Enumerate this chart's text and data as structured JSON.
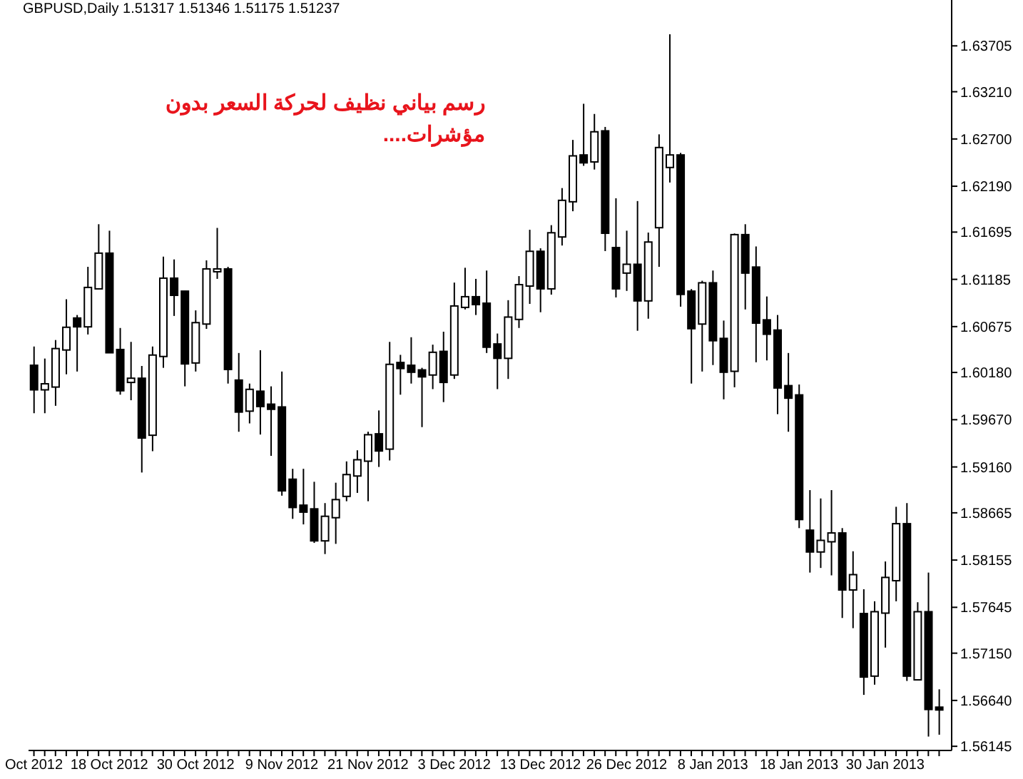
{
  "chart_data": {
    "type": "candlestick",
    "title": "GBPUSD,Daily 1.51317 1.51346 1.51175 1.51237",
    "annotations": [
      "رسم بياني نظيف لحركة السعر بدون مؤشرات...."
    ],
    "categories": [
      "Oct 2012",
      null,
      null,
      null,
      null,
      null,
      null,
      "18 Oct 2012",
      null,
      null,
      null,
      null,
      null,
      null,
      null,
      "30 Oct 2012",
      null,
      null,
      null,
      null,
      null,
      null,
      null,
      "9 Nov 2012",
      null,
      null,
      null,
      null,
      null,
      null,
      null,
      "21 Nov 2012",
      null,
      null,
      null,
      null,
      null,
      null,
      null,
      "3 Dec 2012",
      null,
      null,
      null,
      null,
      null,
      null,
      null,
      "13 Dec 2012",
      null,
      null,
      null,
      null,
      null,
      null,
      null,
      "26 Dec 2012",
      null,
      null,
      null,
      null,
      null,
      null,
      null,
      "8 Jan 2013",
      null,
      null,
      null,
      null,
      null,
      null,
      null,
      "18 Jan 2013",
      null,
      null,
      null,
      null,
      null,
      null,
      null,
      "30 Jan 2013",
      null,
      null,
      null,
      null,
      null
    ],
    "ohlc": [
      [
        1.6025,
        1.6046,
        1.5974,
        1.6
      ],
      [
        1.6,
        1.6033,
        1.5974,
        1.6005
      ],
      [
        1.6003,
        1.6053,
        1.5982,
        1.6043
      ],
      [
        1.6043,
        1.6097,
        1.6016,
        1.6066
      ],
      [
        1.6076,
        1.608,
        1.6019,
        1.6068
      ],
      [
        1.6068,
        1.6132,
        1.6059,
        1.6109
      ],
      [
        1.6109,
        1.6178,
        1.6108,
        1.6146
      ],
      [
        1.6146,
        1.6171,
        1.6039,
        1.604
      ],
      [
        1.6042,
        1.6066,
        1.5994,
        1.5999
      ],
      [
        1.6008,
        1.6051,
        1.5988,
        1.6011
      ],
      [
        1.6011,
        1.6025,
        1.591,
        1.5948
      ],
      [
        1.5951,
        1.6046,
        1.5933,
        1.6036
      ],
      [
        1.6036,
        1.6143,
        1.6023,
        1.6119
      ],
      [
        1.6119,
        1.614,
        1.6079,
        1.6102
      ],
      [
        1.6105,
        1.6106,
        1.6003,
        1.6028
      ],
      [
        1.6029,
        1.6085,
        1.6019,
        1.6071
      ],
      [
        1.6071,
        1.6139,
        1.6065,
        1.6129
      ],
      [
        1.6128,
        1.6174,
        1.6119,
        1.6129
      ],
      [
        1.6129,
        1.6132,
        1.6006,
        1.6022
      ],
      [
        1.6009,
        1.6039,
        1.5954,
        1.5976
      ],
      [
        1.5977,
        1.6006,
        1.5963,
        1.5999
      ],
      [
        1.5997,
        1.6042,
        1.5951,
        1.5982
      ],
      [
        1.5983,
        1.6003,
        1.5928,
        1.5979
      ],
      [
        1.598,
        1.6019,
        1.5885,
        1.5891
      ],
      [
        1.5902,
        1.5914,
        1.586,
        1.5873
      ],
      [
        1.5874,
        1.5914,
        1.5854,
        1.5868
      ],
      [
        1.587,
        1.59,
        1.5834,
        1.5837
      ],
      [
        1.5837,
        1.5877,
        1.5822,
        1.5862
      ],
      [
        1.5862,
        1.5899,
        1.5833,
        1.588
      ],
      [
        1.5885,
        1.5922,
        1.5879,
        1.5907
      ],
      [
        1.5907,
        1.5934,
        1.5888,
        1.5923
      ],
      [
        1.5923,
        1.5954,
        1.5879,
        1.595
      ],
      [
        1.5951,
        1.5977,
        1.5916,
        1.5934
      ],
      [
        1.5936,
        1.6051,
        1.5923,
        1.6026
      ],
      [
        1.6028,
        1.6037,
        1.5994,
        1.6023
      ],
      [
        1.6025,
        1.6056,
        1.6006,
        1.6019
      ],
      [
        1.602,
        1.6023,
        1.5959,
        1.6014
      ],
      [
        1.6016,
        1.6048,
        1.6,
        1.6039
      ],
      [
        1.604,
        1.6062,
        1.5986,
        1.6008
      ],
      [
        1.6016,
        1.6115,
        1.6011,
        1.6089
      ],
      [
        1.6089,
        1.6131,
        1.6086,
        1.6099
      ],
      [
        1.6099,
        1.6119,
        1.608,
        1.6092
      ],
      [
        1.6092,
        1.6128,
        1.6039,
        1.6046
      ],
      [
        1.6048,
        1.606,
        1.6,
        1.6034
      ],
      [
        1.6034,
        1.6096,
        1.6011,
        1.6077
      ],
      [
        1.6076,
        1.6122,
        1.6066,
        1.6112
      ],
      [
        1.6112,
        1.6172,
        1.6092,
        1.6148
      ],
      [
        1.6148,
        1.6152,
        1.6083,
        1.6109
      ],
      [
        1.6109,
        1.6177,
        1.6102,
        1.6168
      ],
      [
        1.6165,
        1.6217,
        1.6155,
        1.6203
      ],
      [
        1.6203,
        1.6269,
        1.6192,
        1.6251
      ],
      [
        1.6252,
        1.6308,
        1.6241,
        1.6245
      ],
      [
        1.6246,
        1.6297,
        1.6237,
        1.6277
      ],
      [
        1.6278,
        1.6283,
        1.6149,
        1.6169
      ],
      [
        1.6152,
        1.6206,
        1.6099,
        1.6109
      ],
      [
        1.6126,
        1.6171,
        1.6106,
        1.6134
      ],
      [
        1.6134,
        1.6203,
        1.6063,
        1.6096
      ],
      [
        1.6096,
        1.6169,
        1.6076,
        1.6158
      ],
      [
        1.6175,
        1.6275,
        1.6132,
        1.626
      ],
      [
        1.624,
        1.6383,
        1.6223,
        1.6252
      ],
      [
        1.6252,
        1.6255,
        1.6089,
        1.6103
      ],
      [
        1.6105,
        1.6108,
        1.6006,
        1.6066
      ],
      [
        1.6071,
        1.6117,
        1.6019,
        1.6114
      ],
      [
        1.6114,
        1.6128,
        1.6026,
        1.6053
      ],
      [
        1.6054,
        1.6074,
        1.5989,
        1.6019
      ],
      [
        1.602,
        1.6168,
        1.6002,
        1.6166
      ],
      [
        1.6166,
        1.6178,
        1.6086,
        1.6126
      ],
      [
        1.6131,
        1.6154,
        1.6029,
        1.6072
      ],
      [
        1.6074,
        1.61,
        1.6031,
        1.606
      ],
      [
        1.6063,
        1.608,
        1.5973,
        1.6002
      ],
      [
        1.6003,
        1.6039,
        1.5954,
        1.5991
      ],
      [
        1.5993,
        1.6005,
        1.585,
        1.586
      ],
      [
        1.5847,
        1.5891,
        1.5802,
        1.5825
      ],
      [
        1.5825,
        1.5882,
        1.5807,
        1.5836
      ],
      [
        1.5836,
        1.5891,
        1.5799,
        1.5844
      ],
      [
        1.5844,
        1.585,
        1.5753,
        1.5784
      ],
      [
        1.5784,
        1.5825,
        1.5742,
        1.5799
      ],
      [
        1.5757,
        1.5784,
        1.567,
        1.569
      ],
      [
        1.5691,
        1.5771,
        1.5681,
        1.5759
      ],
      [
        1.5759,
        1.5814,
        1.5721,
        1.5796
      ],
      [
        1.5794,
        1.5873,
        1.5771,
        1.5854
      ],
      [
        1.5854,
        1.5877,
        1.5685,
        1.5691
      ],
      [
        1.5687,
        1.577,
        1.5687,
        1.5759
      ],
      [
        1.5759,
        1.5802,
        1.5625,
        1.5655
      ],
      [
        1.5656,
        1.5676,
        1.5627,
        1.5655
      ]
    ],
    "ylim": [
      1.561,
      1.642
    ],
    "yticks": [
      1.56145,
      {
        "value": 1.5664,
        "label": "1.56640"
      },
      {
        "value": 1.5715,
        "label": "1.57150"
      },
      1.57645,
      1.58155,
      1.58665,
      {
        "value": 1.5916,
        "label": "1.59160"
      },
      {
        "value": 1.5967,
        "label": "1.59670"
      },
      {
        "value": 1.6018,
        "label": "1.60180"
      },
      1.60675,
      1.61185,
      1.61695,
      {
        "value": 1.6219,
        "label": "1.62190"
      },
      {
        "value": 1.627,
        "label": "1.62700"
      },
      {
        "value": 1.6321,
        "label": "1.63210"
      },
      1.63705
    ],
    "grid": false,
    "legend": false
  }
}
